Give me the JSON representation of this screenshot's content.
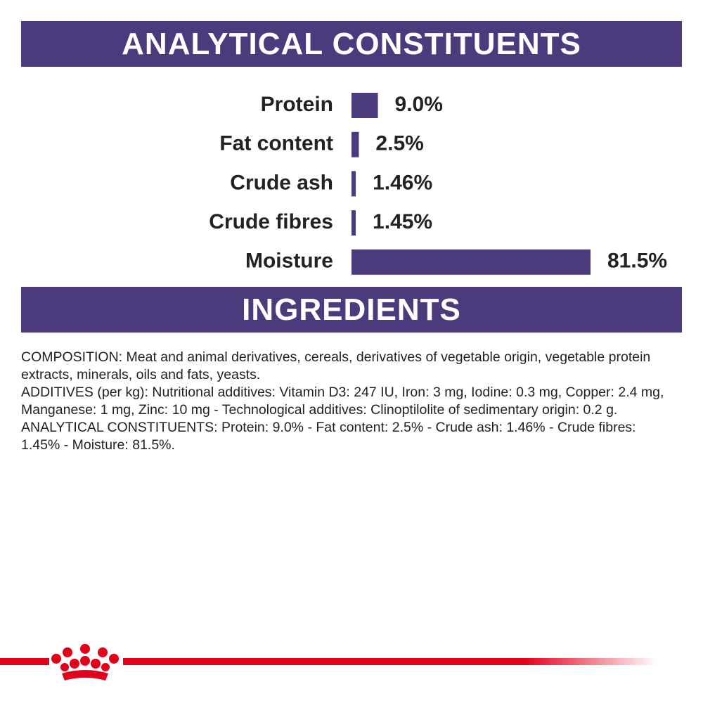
{
  "header": {
    "title": "ANALYTICAL CONSTITUENTS"
  },
  "chart_data": {
    "type": "bar",
    "orientation": "horizontal",
    "categories": [
      "Protein",
      "Fat content",
      "Crude ash",
      "Crude fibres",
      "Moisture"
    ],
    "values": [
      9.0,
      2.5,
      1.46,
      1.45,
      81.5
    ],
    "value_labels": [
      "9.0%",
      "2.5%",
      "1.46%",
      "1.45%",
      "81.5%"
    ],
    "color": "#4b3b7c"
  },
  "ingredients": {
    "title": "INGREDIENTS",
    "paragraphs": [
      "COMPOSITION: Meat and animal derivatives, cereals, derivatives of vegetable origin, vegetable protein extracts, minerals, oils and fats, yeasts.",
      "ADDITIVES (per kg): Nutritional additives: Vitamin D3: 247 IU, Iron: 3 mg, Iodine: 0.3 mg, Copper: 2.4 mg, Manganese: 1 mg, Zinc: 10 mg - Technological additives: Clinoptilolite of sedimentary origin: 0.2 g.",
      "ANALYTICAL CONSTITUENTS: Protein: 9.0% - Fat content: 2.5% - Crude ash: 1.46% - Crude fibres: 1.45% - Moisture: 81.5%."
    ]
  }
}
